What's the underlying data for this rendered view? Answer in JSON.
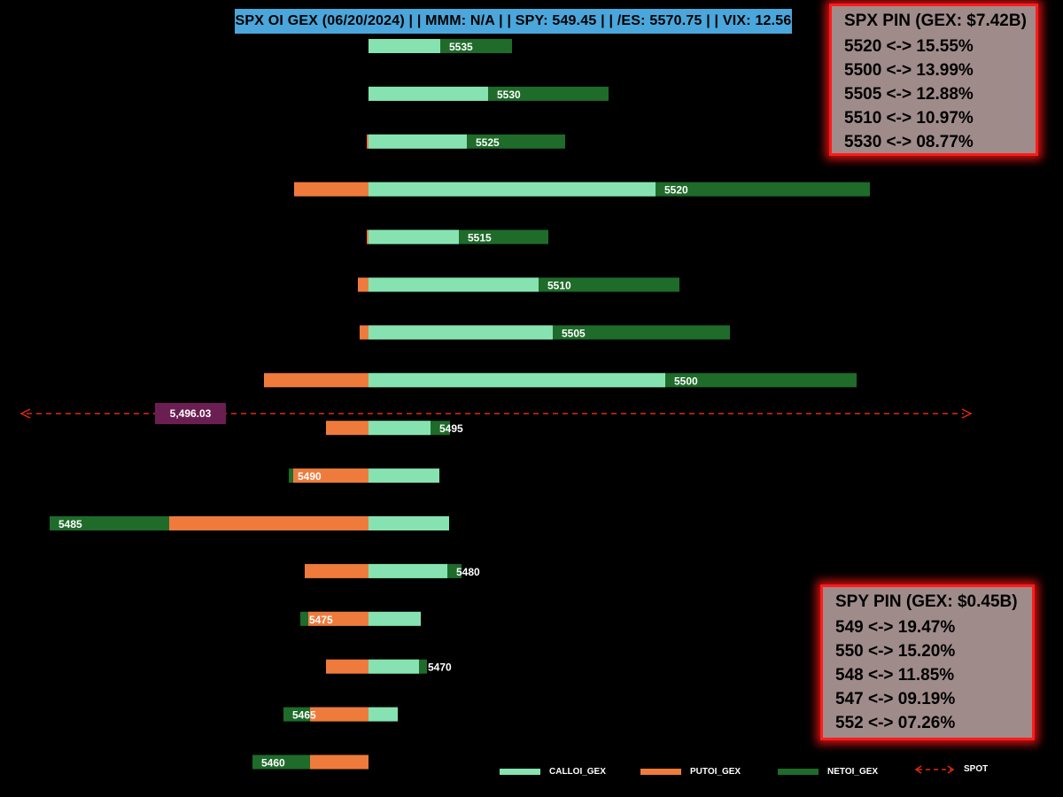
{
  "title": "SPX OI GEX (06/20/2024) | | MMM: N/A | | SPY: 549.45 | | /ES: 5570.75 | | VIX: 12.56",
  "colors": {
    "call": "#86e3b1",
    "put": "#ee7b3c",
    "net": "#1e6b2a",
    "spot": "#e02a10",
    "spot_label_bg": "#6b1e52"
  },
  "spx_pin": {
    "title": "SPX PIN (GEX: $7.42B)",
    "rows": [
      "5520 <-> 15.55%",
      "5500 <-> 13.99%",
      "5505 <-> 12.88%",
      "5510 <-> 10.97%",
      "5530 <-> 08.77%"
    ]
  },
  "spy_pin": {
    "title": "SPY PIN (GEX: $0.45B)",
    "rows": [
      "549 <-> 19.47%",
      "550 <-> 15.20%",
      "548 <-> 11.85%",
      "547 <-> 09.19%",
      "552 <-> 07.26%"
    ]
  },
  "chart_data": {
    "type": "bar",
    "orientation": "horizontal",
    "categories": [
      "5535",
      "5530",
      "5525",
      "5520",
      "5515",
      "5510",
      "5505",
      "5500",
      "5495",
      "5490",
      "5485",
      "5480",
      "5475",
      "5470",
      "5465",
      "5460"
    ],
    "series": [
      {
        "name": "CALLOI_GEX",
        "values": [
          81,
          135,
          111,
          324,
          102,
          192,
          208,
          335,
          70,
          80,
          91,
          89,
          59,
          57,
          33,
          0
        ]
      },
      {
        "name": "PUTOI_GEX",
        "values": [
          0,
          0,
          -2,
          -84,
          -2,
          -12,
          -10,
          -118,
          -48,
          -85,
          -225,
          -72,
          -68,
          -48,
          -66,
          -66
        ]
      },
      {
        "name": "NETOI_GEX",
        "values": [
          162,
          271,
          222,
          566,
          203,
          351,
          408,
          551,
          92,
          -90,
          -360,
          105,
          -77,
          66,
          -96,
          -131
        ]
      }
    ],
    "spot": {
      "value": "5,496.03",
      "label": "SPOT"
    }
  }
}
